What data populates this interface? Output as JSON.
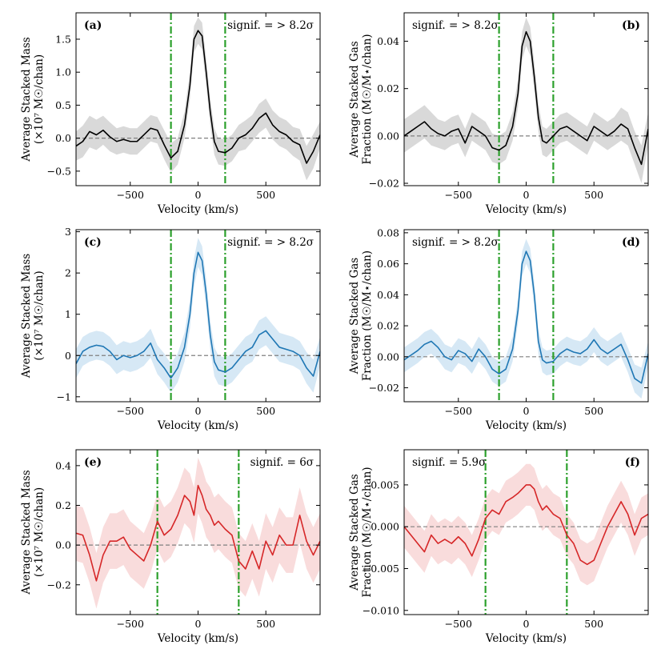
{
  "chart_data": [
    {
      "type": "line",
      "panel": "(a)",
      "significance": "signif. = > 8.2σ",
      "xlabel": "Velocity (km/s)",
      "ylabel": [
        "Average Stacked Mass",
        "(×10⁷ M☉/chan)"
      ],
      "xlim": [
        -900,
        900
      ],
      "ylim": [
        -0.72,
        1.9
      ],
      "xticks": [
        -500,
        0,
        500
      ],
      "xtick_labels": [
        "−500",
        "0",
        "500"
      ],
      "yticks": [
        -0.5,
        0.0,
        0.5,
        1.0,
        1.5
      ],
      "ytick_labels": [
        "−0.5",
        "0.0",
        "0.5",
        "1.0",
        "1.5"
      ],
      "vlines": [
        -200,
        200
      ],
      "hline": 0,
      "line_color": "#000000",
      "band_color": "#d9d9d9",
      "x": [
        -900,
        -850,
        -800,
        -750,
        -700,
        -650,
        -600,
        -550,
        -500,
        -450,
        -400,
        -350,
        -300,
        -250,
        -200,
        -150,
        -100,
        -60,
        -30,
        0,
        30,
        60,
        90,
        120,
        150,
        200,
        250,
        300,
        350,
        400,
        450,
        500,
        550,
        600,
        650,
        700,
        750,
        800,
        850,
        900
      ],
      "y": [
        -0.12,
        -0.05,
        0.1,
        0.05,
        0.12,
        0.02,
        -0.05,
        -0.02,
        -0.05,
        -0.05,
        0.05,
        0.15,
        0.12,
        -0.1,
        -0.3,
        -0.2,
        0.2,
        0.8,
        1.5,
        1.63,
        1.55,
        1.0,
        0.4,
        -0.05,
        -0.2,
        -0.22,
        -0.15,
        0.0,
        0.05,
        0.15,
        0.3,
        0.38,
        0.2,
        0.1,
        0.05,
        -0.05,
        -0.1,
        -0.38,
        -0.2,
        0.05
      ],
      "band": [
        0.22,
        0.24,
        0.24,
        0.23,
        0.22,
        0.22,
        0.2,
        0.2,
        0.2,
        0.2,
        0.2,
        0.2,
        0.2,
        0.22,
        0.22,
        0.2,
        0.2,
        0.2,
        0.2,
        0.2,
        0.2,
        0.2,
        0.2,
        0.2,
        0.2,
        0.2,
        0.2,
        0.2,
        0.22,
        0.2,
        0.22,
        0.22,
        0.22,
        0.22,
        0.22,
        0.22,
        0.24,
        0.26,
        0.26,
        0.2
      ]
    },
    {
      "type": "line",
      "panel": "(b)",
      "significance": "signif. = > 8.2σ",
      "xlabel": "Velocity (km/s)",
      "ylabel": [
        "Average Stacked Gas",
        "Fraction (M☉/M⋆/chan)"
      ],
      "xlim": [
        -900,
        900
      ],
      "ylim": [
        -0.021,
        0.052
      ],
      "xticks": [
        -500,
        0,
        500
      ],
      "xtick_labels": [
        "−500",
        "0",
        "500"
      ],
      "yticks": [
        -0.02,
        0.0,
        0.02,
        0.04
      ],
      "ytick_labels": [
        "−0.02",
        "0.00",
        "0.02",
        "0.04"
      ],
      "vlines": [
        -200,
        200
      ],
      "hline": 0,
      "line_color": "#000000",
      "band_color": "#d9d9d9",
      "x": [
        -900,
        -850,
        -800,
        -750,
        -700,
        -650,
        -600,
        -550,
        -500,
        -450,
        -400,
        -350,
        -300,
        -250,
        -200,
        -150,
        -100,
        -60,
        -30,
        0,
        30,
        60,
        90,
        120,
        150,
        200,
        250,
        300,
        350,
        400,
        450,
        500,
        550,
        600,
        650,
        700,
        750,
        800,
        850,
        900
      ],
      "y": [
        0.0,
        0.002,
        0.004,
        0.006,
        0.003,
        0.001,
        0.0,
        0.002,
        0.003,
        -0.003,
        0.004,
        0.002,
        0.0,
        -0.005,
        -0.006,
        -0.004,
        0.004,
        0.018,
        0.038,
        0.044,
        0.04,
        0.025,
        0.008,
        -0.002,
        -0.003,
        0.0,
        0.003,
        0.004,
        0.002,
        0.0,
        -0.002,
        0.004,
        0.002,
        0.0,
        0.002,
        0.005,
        0.003,
        -0.005,
        -0.012,
        0.003
      ],
      "band": [
        0.007,
        0.007,
        0.007,
        0.007,
        0.007,
        0.006,
        0.006,
        0.006,
        0.006,
        0.006,
        0.006,
        0.006,
        0.006,
        0.006,
        0.006,
        0.006,
        0.006,
        0.006,
        0.006,
        0.006,
        0.006,
        0.006,
        0.006,
        0.006,
        0.006,
        0.006,
        0.006,
        0.006,
        0.006,
        0.006,
        0.006,
        0.006,
        0.006,
        0.006,
        0.006,
        0.007,
        0.007,
        0.007,
        0.008,
        0.007
      ]
    },
    {
      "type": "line",
      "panel": "(c)",
      "significance": "signif. = > 8.2σ",
      "xlabel": "Velocity (km/s)",
      "ylabel": [
        "Average Stacked Mass",
        "(×10⁷ M☉/chan)"
      ],
      "xlim": [
        -900,
        900
      ],
      "ylim": [
        -1.12,
        3.05
      ],
      "xticks": [
        -500,
        0,
        500
      ],
      "xtick_labels": [
        "−500",
        "0",
        "500"
      ],
      "yticks": [
        -1,
        0,
        1,
        2,
        3
      ],
      "ytick_labels": [
        "−1",
        "0",
        "1",
        "2",
        "3"
      ],
      "vlines": [
        -200,
        200
      ],
      "hline": 0,
      "line_color": "#1f77b4",
      "band_color": "#d6e8f5",
      "x": [
        -900,
        -850,
        -800,
        -750,
        -700,
        -650,
        -600,
        -550,
        -500,
        -450,
        -400,
        -350,
        -300,
        -250,
        -200,
        -150,
        -100,
        -60,
        -30,
        0,
        30,
        60,
        90,
        120,
        150,
        200,
        250,
        300,
        350,
        400,
        450,
        500,
        550,
        600,
        650,
        700,
        750,
        800,
        850,
        900
      ],
      "y": [
        -0.2,
        0.1,
        0.2,
        0.25,
        0.22,
        0.1,
        -0.1,
        0.0,
        -0.05,
        0.0,
        0.1,
        0.3,
        -0.1,
        -0.3,
        -0.55,
        -0.3,
        0.2,
        1.0,
        2.0,
        2.5,
        2.3,
        1.5,
        0.5,
        -0.15,
        -0.35,
        -0.4,
        -0.3,
        -0.1,
        0.1,
        0.2,
        0.5,
        0.6,
        0.4,
        0.2,
        0.15,
        0.1,
        0.0,
        -0.3,
        -0.5,
        0.1
      ],
      "band": [
        0.35,
        0.35,
        0.35,
        0.35,
        0.35,
        0.35,
        0.35,
        0.35,
        0.35,
        0.35,
        0.35,
        0.35,
        0.35,
        0.35,
        0.35,
        0.35,
        0.35,
        0.35,
        0.35,
        0.35,
        0.35,
        0.35,
        0.35,
        0.35,
        0.35,
        0.35,
        0.35,
        0.35,
        0.35,
        0.35,
        0.35,
        0.35,
        0.35,
        0.35,
        0.35,
        0.35,
        0.35,
        0.38,
        0.4,
        0.35
      ]
    },
    {
      "type": "line",
      "panel": "(d)",
      "significance": "signif. = > 8.2σ",
      "xlabel": "Velocity (km/s)",
      "ylabel": [
        "Average Stacked Gas",
        "Fraction (M☉/M⋆/chan)"
      ],
      "xlim": [
        -900,
        900
      ],
      "ylim": [
        -0.029,
        0.082
      ],
      "xticks": [
        -500,
        0,
        500
      ],
      "xtick_labels": [
        "−500",
        "0",
        "500"
      ],
      "yticks": [
        -0.02,
        0.0,
        0.02,
        0.04,
        0.06,
        0.08
      ],
      "ytick_labels": [
        "−0.02",
        "0.00",
        "0.02",
        "0.04",
        "0.06",
        "0.08"
      ],
      "vlines": [
        -200,
        200
      ],
      "hline": 0,
      "line_color": "#1f77b4",
      "band_color": "#d6e8f5",
      "x": [
        -900,
        -850,
        -800,
        -750,
        -700,
        -650,
        -600,
        -550,
        -500,
        -450,
        -400,
        -350,
        -300,
        -250,
        -200,
        -150,
        -100,
        -60,
        -30,
        0,
        30,
        60,
        90,
        120,
        150,
        200,
        250,
        300,
        350,
        400,
        450,
        500,
        550,
        600,
        650,
        700,
        750,
        800,
        850,
        900
      ],
      "y": [
        -0.002,
        0.001,
        0.004,
        0.008,
        0.01,
        0.006,
        0.0,
        -0.002,
        0.004,
        0.002,
        -0.003,
        0.005,
        0.0,
        -0.008,
        -0.011,
        -0.008,
        0.005,
        0.03,
        0.06,
        0.068,
        0.062,
        0.04,
        0.01,
        -0.002,
        -0.004,
        -0.003,
        0.002,
        0.005,
        0.003,
        0.002,
        0.005,
        0.011,
        0.005,
        0.002,
        0.005,
        0.008,
        -0.002,
        -0.014,
        -0.017,
        0.002
      ],
      "band": [
        0.008,
        0.008,
        0.008,
        0.008,
        0.008,
        0.008,
        0.008,
        0.008,
        0.008,
        0.008,
        0.008,
        0.008,
        0.008,
        0.008,
        0.008,
        0.008,
        0.008,
        0.008,
        0.008,
        0.008,
        0.008,
        0.008,
        0.008,
        0.008,
        0.008,
        0.008,
        0.008,
        0.008,
        0.008,
        0.008,
        0.008,
        0.008,
        0.008,
        0.008,
        0.008,
        0.008,
        0.008,
        0.009,
        0.01,
        0.008
      ]
    },
    {
      "type": "line",
      "panel": "(e)",
      "significance": "signif. = 6σ",
      "xlabel": "Velocity (km/s)",
      "ylabel": [
        "Average Stacked Mass",
        "(×10⁷ M☉/chan)"
      ],
      "xlim": [
        -900,
        900
      ],
      "ylim": [
        -0.35,
        0.48
      ],
      "xticks": [
        -500,
        0,
        500
      ],
      "xtick_labels": [
        "−500",
        "0",
        "500"
      ],
      "yticks": [
        -0.2,
        0.0,
        0.2,
        0.4
      ],
      "ytick_labels": [
        "−0.2",
        "0.0",
        "0.2",
        "0.4"
      ],
      "vlines": [
        -300,
        300
      ],
      "hline": 0,
      "line_color": "#d62728",
      "band_color": "#f9dcdc",
      "x": [
        -900,
        -850,
        -800,
        -750,
        -700,
        -650,
        -600,
        -550,
        -500,
        -450,
        -400,
        -350,
        -300,
        -250,
        -200,
        -150,
        -100,
        -60,
        -30,
        0,
        30,
        60,
        90,
        120,
        150,
        200,
        250,
        300,
        350,
        400,
        450,
        500,
        550,
        600,
        650,
        700,
        750,
        800,
        850,
        900
      ],
      "y": [
        0.06,
        0.05,
        -0.05,
        -0.18,
        -0.05,
        0.02,
        0.02,
        0.04,
        -0.02,
        -0.05,
        -0.08,
        0.0,
        0.12,
        0.05,
        0.08,
        0.15,
        0.25,
        0.22,
        0.15,
        0.3,
        0.25,
        0.18,
        0.15,
        0.1,
        0.12,
        0.08,
        0.05,
        -0.08,
        -0.12,
        -0.03,
        -0.12,
        0.02,
        -0.05,
        0.05,
        0.0,
        0.0,
        0.15,
        0.02,
        -0.05,
        0.02
      ],
      "band": [
        0.14,
        0.14,
        0.14,
        0.14,
        0.14,
        0.14,
        0.14,
        0.14,
        0.14,
        0.14,
        0.14,
        0.14,
        0.14,
        0.14,
        0.14,
        0.14,
        0.14,
        0.14,
        0.14,
        0.14,
        0.14,
        0.14,
        0.14,
        0.14,
        0.14,
        0.14,
        0.14,
        0.14,
        0.14,
        0.14,
        0.14,
        0.14,
        0.14,
        0.14,
        0.14,
        0.14,
        0.14,
        0.14,
        0.14,
        0.14
      ]
    },
    {
      "type": "line",
      "panel": "(f)",
      "significance": "signif. = 5.9σ",
      "xlabel": "Velocity (km/s)",
      "ylabel": [
        "Average Stacked Gas",
        "Fraction (M☉/M⋆/chan)"
      ],
      "xlim": [
        -900,
        900
      ],
      "ylim": [
        -0.0105,
        0.0092
      ],
      "xticks": [
        -500,
        0,
        500
      ],
      "xtick_labels": [
        "−500",
        "0",
        "500"
      ],
      "yticks": [
        -0.01,
        -0.005,
        0.0,
        0.005
      ],
      "ytick_labels": [
        "−0.010",
        "−0.005",
        "0.000",
        "0.005"
      ],
      "vlines": [
        -300,
        300
      ],
      "hline": 0,
      "line_color": "#d62728",
      "band_color": "#f9dcdc",
      "x": [
        -900,
        -850,
        -800,
        -750,
        -700,
        -650,
        -600,
        -550,
        -500,
        -450,
        -400,
        -350,
        -300,
        -250,
        -200,
        -150,
        -100,
        -60,
        -30,
        0,
        30,
        60,
        90,
        120,
        150,
        200,
        250,
        300,
        350,
        400,
        450,
        500,
        550,
        600,
        650,
        700,
        750,
        800,
        850,
        900
      ],
      "y": [
        0.0,
        -0.001,
        -0.002,
        -0.003,
        -0.001,
        -0.002,
        -0.0015,
        -0.002,
        -0.0012,
        -0.002,
        -0.0035,
        -0.0015,
        0.001,
        0.002,
        0.0015,
        0.003,
        0.0035,
        0.004,
        0.0045,
        0.005,
        0.005,
        0.0045,
        0.003,
        0.002,
        0.0025,
        0.0015,
        0.001,
        -0.001,
        -0.002,
        -0.004,
        -0.0045,
        -0.004,
        -0.002,
        0.0,
        0.0015,
        0.003,
        0.0015,
        -0.001,
        0.001,
        0.0015
      ],
      "band": [
        0.0025,
        0.0025,
        0.0025,
        0.0025,
        0.0025,
        0.0025,
        0.0025,
        0.0025,
        0.0025,
        0.0025,
        0.0025,
        0.0025,
        0.0025,
        0.0025,
        0.0025,
        0.0025,
        0.0025,
        0.0025,
        0.0025,
        0.0025,
        0.0025,
        0.0025,
        0.0025,
        0.0025,
        0.0025,
        0.0025,
        0.0025,
        0.0025,
        0.0025,
        0.0025,
        0.0025,
        0.0025,
        0.0025,
        0.0025,
        0.0025,
        0.0025,
        0.0025,
        0.0025,
        0.0025,
        0.0025
      ]
    }
  ],
  "colors": {
    "vline": "#2ca02c",
    "hline": "#808080"
  }
}
